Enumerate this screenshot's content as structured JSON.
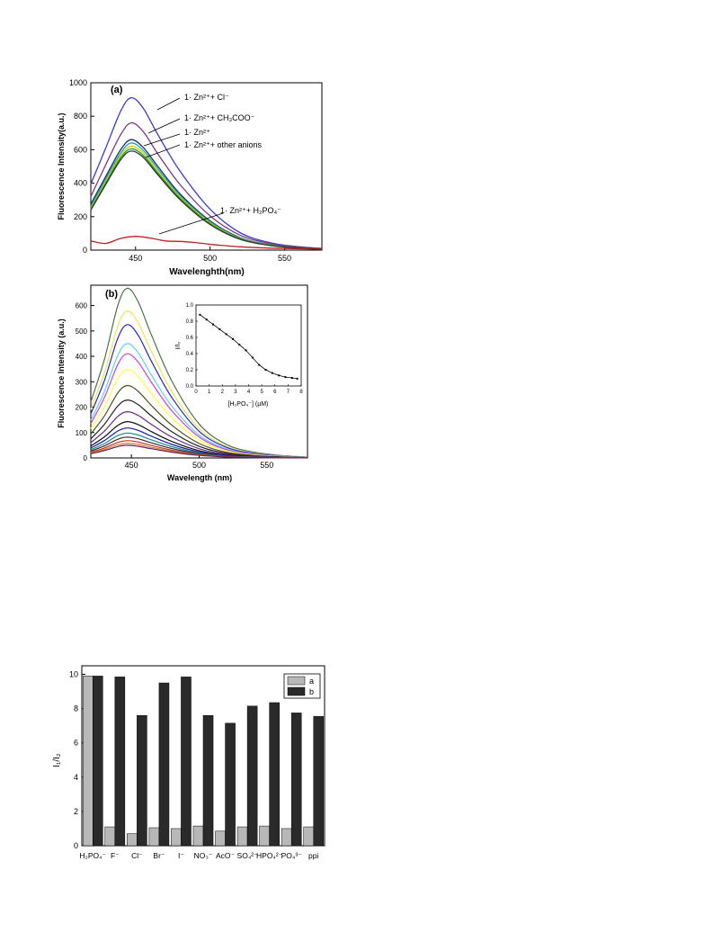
{
  "chart_data": [
    {
      "panel_label": "(a)",
      "type": "line",
      "xlabel": "Wavelenghth(nm)",
      "ylabel": "Fluorescence Intensity(a.u.)",
      "xlim": [
        420,
        575
      ],
      "ylim": [
        0,
        1000
      ],
      "x_ticks": [
        450,
        500,
        550
      ],
      "y_ticks": [
        0,
        200,
        400,
        600,
        800,
        1000
      ],
      "annotations": [
        "1· Zn²⁺+ Cl⁻",
        "1· Zn²⁺+ CH₃COO⁻",
        "1· Zn²⁺",
        "1· Zn²⁺+ other anions",
        "1· Zn²⁺+ H₂PO₄⁻"
      ],
      "series": [
        {
          "color": "#3a3ad8",
          "points": [
            [
              420,
              395
            ],
            [
              430,
              610
            ],
            [
              440,
              830
            ],
            [
              447,
              910
            ],
            [
              455,
              850
            ],
            [
              465,
              690
            ],
            [
              480,
              470
            ],
            [
              500,
              245
            ],
            [
              520,
              105
            ],
            [
              540,
              45
            ],
            [
              560,
              20
            ],
            [
              575,
              10
            ]
          ]
        },
        {
          "color": "#7a3b7a",
          "points": [
            [
              420,
              320
            ],
            [
              430,
              510
            ],
            [
              440,
              690
            ],
            [
              447,
              760
            ],
            [
              455,
              710
            ],
            [
              465,
              575
            ],
            [
              480,
              390
            ],
            [
              500,
              205
            ],
            [
              520,
              90
            ],
            [
              540,
              40
            ],
            [
              560,
              18
            ],
            [
              575,
              10
            ]
          ]
        },
        {
          "color": "#1a2a7a",
          "points": [
            [
              420,
              275
            ],
            [
              430,
              440
            ],
            [
              440,
              600
            ],
            [
              447,
              660
            ],
            [
              455,
              615
            ],
            [
              465,
              500
            ],
            [
              480,
              335
            ],
            [
              500,
              175
            ],
            [
              520,
              75
            ],
            [
              540,
              33
            ],
            [
              560,
              15
            ],
            [
              575,
              8
            ]
          ]
        },
        {
          "color": "#20a0a0",
          "points": [
            [
              420,
              262
            ],
            [
              430,
              425
            ],
            [
              440,
              580
            ],
            [
              447,
              640
            ],
            [
              455,
              598
            ],
            [
              465,
              485
            ],
            [
              480,
              325
            ],
            [
              500,
              170
            ],
            [
              520,
              72
            ],
            [
              540,
              32
            ],
            [
              560,
              14
            ],
            [
              575,
              8
            ]
          ]
        },
        {
          "color": "#cccc00",
          "points": [
            [
              420,
              250
            ],
            [
              430,
              410
            ],
            [
              440,
              565
            ],
            [
              447,
              620
            ],
            [
              455,
              582
            ],
            [
              465,
              470
            ],
            [
              480,
              315
            ],
            [
              500,
              163
            ],
            [
              520,
              70
            ],
            [
              540,
              30
            ],
            [
              560,
              13
            ],
            [
              575,
              7
            ]
          ]
        },
        {
          "color": "#20a020",
          "points": [
            [
              420,
              245
            ],
            [
              430,
              400
            ],
            [
              440,
              552
            ],
            [
              447,
              605
            ],
            [
              455,
              568
            ],
            [
              465,
              460
            ],
            [
              480,
              308
            ],
            [
              500,
              158
            ],
            [
              520,
              68
            ],
            [
              540,
              29
            ],
            [
              560,
              13
            ],
            [
              575,
              7
            ]
          ]
        },
        {
          "color": "#333333",
          "points": [
            [
              420,
              240
            ],
            [
              430,
              392
            ],
            [
              440,
              540
            ],
            [
              447,
              592
            ],
            [
              455,
              556
            ],
            [
              465,
              450
            ],
            [
              480,
              300
            ],
            [
              500,
              153
            ],
            [
              520,
              65
            ],
            [
              540,
              28
            ],
            [
              560,
              12
            ],
            [
              575,
              7
            ]
          ]
        },
        {
          "color": "#c02020",
          "points": [
            [
              420,
              55
            ],
            [
              430,
              40
            ],
            [
              440,
              70
            ],
            [
              450,
              82
            ],
            [
              460,
              72
            ],
            [
              470,
              55
            ],
            [
              480,
              52
            ],
            [
              490,
              45
            ],
            [
              500,
              35
            ],
            [
              520,
              20
            ],
            [
              540,
              12
            ],
            [
              560,
              8
            ],
            [
              575,
              5
            ]
          ]
        }
      ]
    },
    {
      "panel_label": "(b)",
      "type": "line",
      "xlabel": "Wavelength (nm)",
      "ylabel": "Fluorescence Intensity (a.u.)",
      "xlim": [
        420,
        580
      ],
      "ylim": [
        0,
        680
      ],
      "x_ticks": [
        450,
        500,
        550
      ],
      "y_ticks": [
        0,
        100,
        200,
        300,
        400,
        500,
        600
      ],
      "series": [
        {
          "color": "#507050",
          "peak": 668
        },
        {
          "color": "#e8e850",
          "peak": 578
        },
        {
          "color": "#2828d8",
          "peak": 525
        },
        {
          "color": "#60d0f0",
          "peak": 450
        },
        {
          "color": "#d040d0",
          "peak": 410
        },
        {
          "color": "#ffff40",
          "peak": 348
        },
        {
          "color": "#505020",
          "peak": 285
        },
        {
          "color": "#202020",
          "peak": 228
        },
        {
          "color": "#6a2a8a",
          "peak": 182
        },
        {
          "color": "#101010",
          "peak": 143
        },
        {
          "color": "#1818b0",
          "peak": 118
        },
        {
          "color": "#208a8a",
          "peak": 98
        },
        {
          "color": "#303030",
          "peak": 82
        },
        {
          "color": "#c03030",
          "peak": 68
        },
        {
          "color": "#d08030",
          "peak": 58
        },
        {
          "color": "#602060",
          "peak": 50
        }
      ],
      "inset": {
        "type": "line",
        "ylabel": "I/I₀",
        "xlabel": "[H₂PO₄⁻] (μM)",
        "xlim": [
          0,
          8
        ],
        "ylim": [
          0,
          1.0
        ],
        "x_ticks": [
          0,
          1,
          2,
          3,
          4,
          5,
          6,
          7,
          8
        ],
        "y_ticks": [
          "0.0",
          "0.2",
          "0.4",
          "0.6",
          "0.8",
          "1.0"
        ],
        "points": [
          [
            0.3,
            0.88
          ],
          [
            0.8,
            0.82
          ],
          [
            1.3,
            0.76
          ],
          [
            1.8,
            0.7
          ],
          [
            2.3,
            0.64
          ],
          [
            2.8,
            0.58
          ],
          [
            3.3,
            0.51
          ],
          [
            3.8,
            0.44
          ],
          [
            4.3,
            0.35
          ],
          [
            4.8,
            0.26
          ],
          [
            5.3,
            0.2
          ],
          [
            5.8,
            0.16
          ],
          [
            6.3,
            0.13
          ],
          [
            6.8,
            0.11
          ],
          [
            7.3,
            0.1
          ],
          [
            7.7,
            0.09
          ]
        ]
      }
    },
    {
      "type": "bar",
      "ylabel": "I₁/I₂",
      "ylim": [
        0,
        10.5
      ],
      "y_ticks": [
        0,
        2,
        4,
        6,
        8,
        10
      ],
      "categories": [
        "H₂PO₄⁻",
        "F⁻",
        "Cl⁻",
        "Br⁻",
        "I⁻",
        "NO₃⁻",
        "AcO⁻",
        "SO₄²⁻",
        "HPO₄²⁻",
        "PO₄³⁻",
        "ppi"
      ],
      "legend": {
        "placement": "top-right"
      },
      "series": [
        {
          "name": "a",
          "color": "#b8b8b8",
          "values": [
            9.9,
            1.1,
            0.7,
            1.05,
            1.0,
            1.15,
            0.85,
            1.1,
            1.15,
            1.0,
            1.1
          ]
        },
        {
          "name": "b",
          "color": "#2a2a2a",
          "values": [
            9.9,
            9.85,
            7.6,
            9.5,
            9.85,
            7.6,
            7.15,
            8.15,
            8.35,
            7.75,
            7.55
          ]
        }
      ]
    }
  ]
}
